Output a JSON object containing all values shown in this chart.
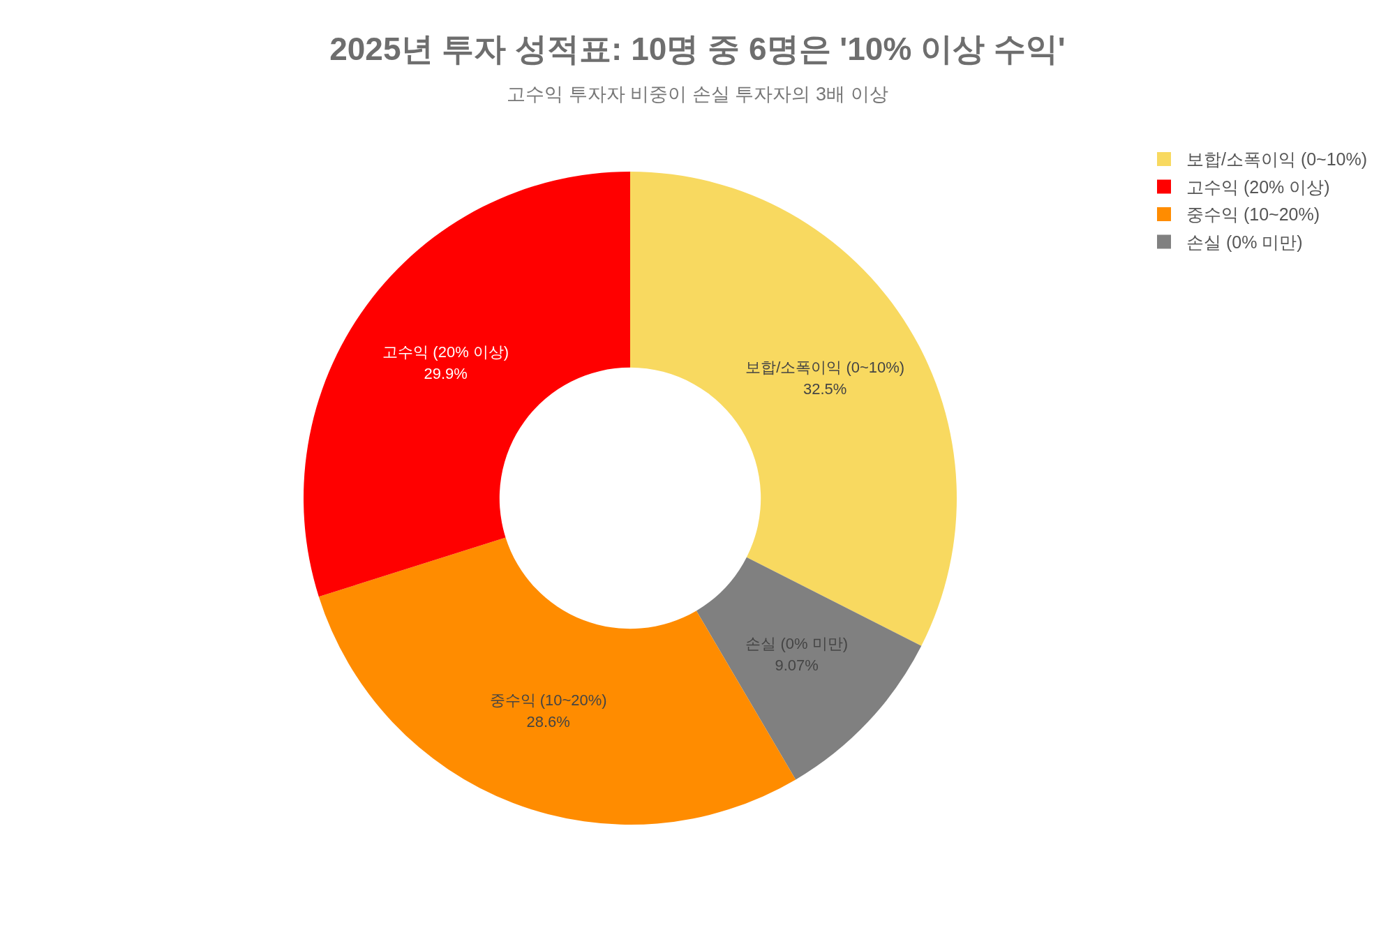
{
  "chart_data": {
    "type": "donut",
    "title": "2025년 투자 성적표: 10명 중 6명은 '10% 이상 수익'",
    "subtitle": "고수익 투자자 비중이 손실 투자자의 3배 이상",
    "categories": [
      "보합/소폭이익 (0~10%)",
      "손실 (0% 미만)",
      "중수익 (10~20%)",
      "고수익 (20% 이상)"
    ],
    "values": [
      32.5,
      9.07,
      28.6,
      29.9
    ],
    "value_labels": [
      "32.5%",
      "9.07%",
      "28.6%",
      "29.9%"
    ],
    "colors": [
      "#f8d960",
      "#808080",
      "#ff8c00",
      "#ff0000"
    ],
    "legend": "top right"
  }
}
